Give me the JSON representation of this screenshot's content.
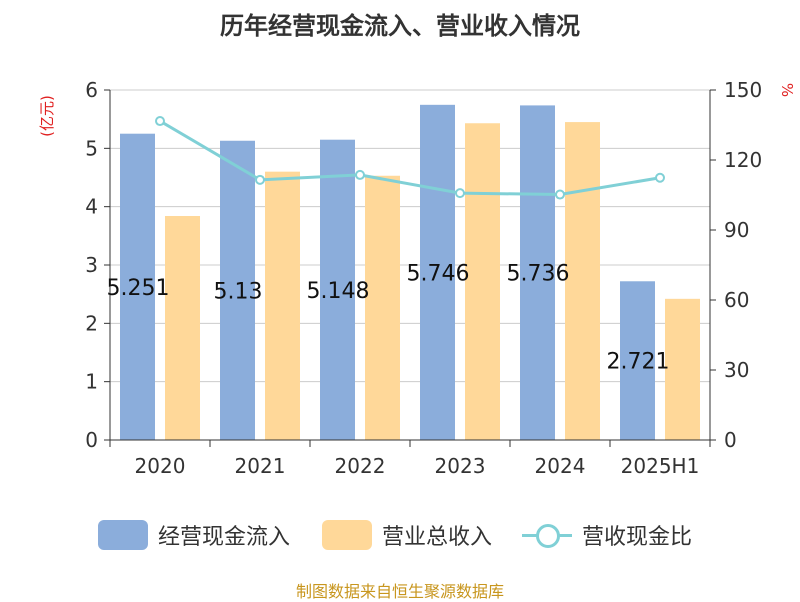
{
  "chart_data": {
    "type": "bar",
    "title": "历年经营现金流入、营业收入情况",
    "left_axis_unit": "(亿元)",
    "right_axis_unit": "%",
    "categories": [
      "2020",
      "2021",
      "2022",
      "2023",
      "2024",
      "2025H1"
    ],
    "ylim_left": [
      0,
      6
    ],
    "yticks_left": [
      "0",
      "1",
      "2",
      "3",
      "4",
      "5",
      "6"
    ],
    "ylim_right": [
      0,
      150
    ],
    "yticks_right": [
      "0",
      "30",
      "60",
      "90",
      "120",
      "150"
    ],
    "grid": true,
    "legend_position": "bottom",
    "series": [
      {
        "name": "经营现金流入",
        "kind": "bar",
        "axis": "left",
        "color": "#8BADDB",
        "values": [
          5.251,
          5.13,
          5.148,
          5.746,
          5.736,
          2.721
        ],
        "labels": [
          "5.251",
          "5.13",
          "5.148",
          "5.746",
          "5.736",
          "2.721"
        ]
      },
      {
        "name": "营业总收入",
        "kind": "bar",
        "axis": "left",
        "color": "#FFD899",
        "values": [
          3.84,
          4.6,
          4.53,
          5.43,
          5.45,
          2.42
        ]
      },
      {
        "name": "营收现金比",
        "kind": "line",
        "axis": "right",
        "color": "#80D0D6",
        "values": [
          136.7,
          111.5,
          113.6,
          105.8,
          105.2,
          112.4
        ]
      }
    ]
  },
  "footer": "制图数据来自恒生聚源数据库"
}
